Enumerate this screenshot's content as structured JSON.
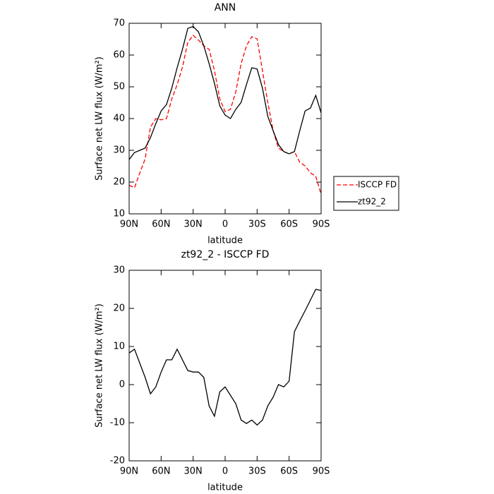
{
  "chart_data": [
    {
      "type": "line",
      "title": "ANN",
      "x_label": "latitude",
      "y_label": "Surface net LW flux (W/m²)",
      "x": [
        90,
        85,
        80,
        75,
        70,
        65,
        60,
        55,
        50,
        45,
        40,
        35,
        30,
        25,
        20,
        15,
        10,
        5,
        0,
        -5,
        -10,
        -15,
        -20,
        -25,
        -30,
        -35,
        -40,
        -45,
        -50,
        -55,
        -60,
        -65,
        -70,
        -75,
        -80,
        -85,
        -90
      ],
      "series": [
        {
          "name": "ISCCP FD",
          "color": "#ff0000",
          "style": "dashed",
          "values": [
            19,
            18.2,
            22.9,
            27.3,
            37.3,
            40,
            39.6,
            40,
            46.2,
            50.7,
            56.2,
            64,
            66.2,
            64.7,
            62.9,
            61.8,
            55.1,
            46.2,
            42.2,
            42.9,
            48.4,
            57.3,
            62.9,
            65.8,
            65.1,
            55.1,
            45.1,
            36.2,
            30.7,
            29.6,
            28.9,
            29.6,
            26.2,
            25.1,
            22.9,
            21.8,
            16.2
          ]
        },
        {
          "name": "zt92_2",
          "color": "#000000",
          "style": "solid",
          "values": [
            27.1,
            29.3,
            30,
            30.7,
            34,
            38.4,
            42.4,
            44.4,
            49.6,
            56,
            61.8,
            68.4,
            69,
            67.3,
            62.9,
            57.3,
            51.1,
            44,
            41.1,
            40,
            42.9,
            45.1,
            50.7,
            56,
            55.6,
            49.6,
            40.7,
            36.2,
            31.8,
            29.6,
            28.9,
            29.6,
            36.2,
            42.4,
            43.3,
            47.3,
            41.8
          ]
        }
      ],
      "xlim": [
        90,
        -90
      ],
      "xticks": [
        {
          "value": 90,
          "label": "90N"
        },
        {
          "value": 60,
          "label": "60N"
        },
        {
          "value": 30,
          "label": "30N"
        },
        0,
        {
          "value": -30,
          "label": "30S"
        },
        {
          "value": -60,
          "label": "60S"
        },
        {
          "value": -90,
          "label": "90S"
        }
      ],
      "ylim": [
        10,
        70
      ],
      "yticks": [
        10,
        20,
        30,
        40,
        50,
        60,
        70
      ],
      "legend": "right"
    },
    {
      "type": "line",
      "title": "zt92_2 - ISCCP FD",
      "x_label": "latitude",
      "y_label": "Surface net LW flux (W/m²)",
      "x": [
        90,
        85,
        80,
        75,
        70,
        65,
        60,
        55,
        50,
        45,
        40,
        35,
        30,
        25,
        20,
        15,
        10,
        5,
        0,
        -5,
        -10,
        -15,
        -20,
        -25,
        -30,
        -35,
        -40,
        -45,
        -50,
        -55,
        -60,
        -65,
        -70,
        -75,
        -80,
        -85,
        -90
      ],
      "values": [
        8.3,
        9.3,
        5.6,
        1.9,
        -2.4,
        -0.6,
        3.3,
        6.5,
        6.5,
        9.3,
        6.5,
        3.7,
        3.3,
        3.3,
        1.9,
        -5.6,
        -8.3,
        -1.9,
        -0.6,
        -2.8,
        -5,
        -9.3,
        -10.2,
        -9.3,
        -10.6,
        -9.3,
        -5.6,
        -3.3,
        0,
        -0.6,
        0.9,
        13.9,
        16.7,
        19.4,
        22.2,
        25,
        24.7
      ],
      "color": "#000000",
      "xlim": [
        90,
        -90
      ],
      "xticks": [
        {
          "value": 90,
          "label": "90N"
        },
        {
          "value": 60,
          "label": "60N"
        },
        {
          "value": 30,
          "label": "30N"
        },
        0,
        {
          "value": -30,
          "label": "30S"
        },
        {
          "value": -60,
          "label": "60S"
        },
        {
          "value": -90,
          "label": "90S"
        }
      ],
      "ylim": [
        -20,
        30
      ],
      "yticks": [
        -20,
        -10,
        0,
        10,
        20,
        30
      ]
    }
  ]
}
